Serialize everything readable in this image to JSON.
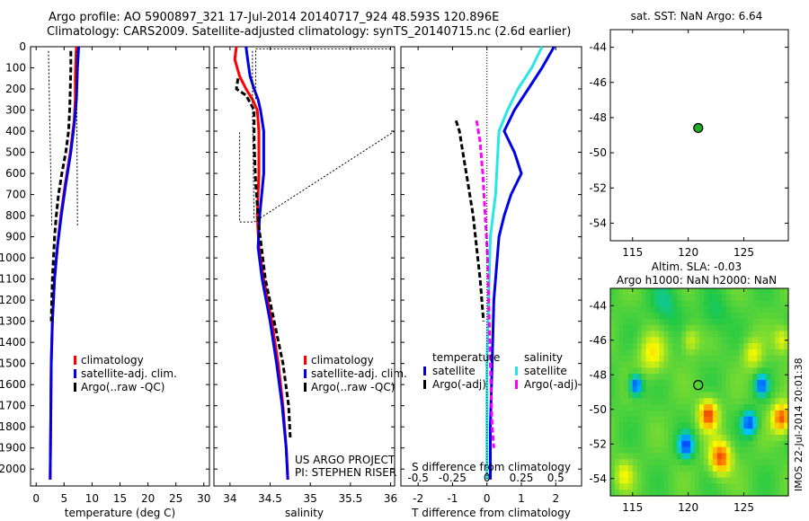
{
  "header": {
    "line1": "Argo profile: AO 5900897_321 17-Jul-2014 20140717_924 48.593S 120.896E",
    "line2": "Climatology: CARS2009. Satellite-adjusted climatology: synTS_20140715.nc (2.6d earlier)"
  },
  "credits": {
    "project": "US ARGO PROJECT",
    "pi": "PI: STEPHEN RISER",
    "side_stamp": "IMOS 22-Jul-2014 20:01:38"
  },
  "colors": {
    "climatology": "#ff0000",
    "satellite": "#0000e6",
    "argo": "#000000",
    "satellite_salinity": "#28e6e6",
    "argo_salinity": "#ff00ff",
    "marker": "#22aa22"
  },
  "chart_data": [
    {
      "id": "temperature",
      "type": "line",
      "xlabel": "temperature (deg C)",
      "ylabel": "",
      "xlim": [
        -1,
        31
      ],
      "ylim": [
        2080,
        0
      ],
      "xticks": [
        0,
        5,
        10,
        15,
        20,
        25,
        30
      ],
      "yticks": [
        0,
        100,
        200,
        300,
        400,
        500,
        600,
        700,
        800,
        900,
        1000,
        1100,
        1200,
        1300,
        1400,
        1500,
        1600,
        1700,
        1800,
        1900,
        2000
      ],
      "legend": [
        "climatology",
        "satellite-adj. clim.",
        "Argo(..raw -QC)"
      ],
      "series": [
        {
          "name": "climatology",
          "color": "#ff0000",
          "dash": "",
          "points": [
            [
              7.2,
              0
            ],
            [
              7.1,
              60
            ],
            [
              7.0,
              150
            ],
            [
              7.0,
              250
            ],
            [
              6.8,
              350
            ],
            [
              6.1,
              500
            ],
            [
              5.2,
              650
            ],
            [
              4.4,
              800
            ],
            [
              3.8,
              950
            ],
            [
              3.3,
              1100
            ],
            [
              2.9,
              1300
            ],
            [
              2.7,
              1500
            ],
            [
              2.6,
              1800
            ],
            [
              2.5,
              2050
            ]
          ]
        },
        {
          "name": "satellite-adj. clim.",
          "color": "#0000e6",
          "dash": "",
          "points": [
            [
              7.6,
              0
            ],
            [
              7.4,
              100
            ],
            [
              7.2,
              250
            ],
            [
              6.9,
              350
            ],
            [
              6.2,
              500
            ],
            [
              5.3,
              650
            ],
            [
              4.5,
              800
            ],
            [
              3.8,
              950
            ],
            [
              3.3,
              1100
            ],
            [
              2.9,
              1300
            ],
            [
              2.7,
              1500
            ],
            [
              2.6,
              1800
            ],
            [
              2.5,
              2050
            ]
          ]
        },
        {
          "name": "Argo(..raw -QC)",
          "color": "#000000",
          "dash": "6,3",
          "points": [
            [
              6.2,
              20
            ],
            [
              6.2,
              100
            ],
            [
              6.1,
              200
            ],
            [
              6.0,
              300
            ],
            [
              5.8,
              400
            ],
            [
              5.3,
              500
            ],
            [
              4.6,
              600
            ],
            [
              4.0,
              700
            ],
            [
              3.6,
              800
            ],
            [
              3.3,
              900
            ],
            [
              3.1,
              1000
            ],
            [
              2.9,
              1100
            ],
            [
              2.8,
              1200
            ],
            [
              2.7,
              1300
            ]
          ]
        }
      ]
    },
    {
      "id": "salinity",
      "type": "line",
      "xlabel": "salinity",
      "ylabel": "",
      "xlim": [
        33.8,
        36.05
      ],
      "ylim": [
        2080,
        0
      ],
      "xticks": [
        34,
        34.5,
        35,
        35.5,
        36
      ],
      "yticks": [
        0,
        100,
        200,
        300,
        400,
        500,
        600,
        700,
        800,
        900,
        1000,
        1100,
        1200,
        1300,
        1400,
        1500,
        1600,
        1700,
        1800,
        1900,
        2000
      ],
      "legend": [
        "climatology",
        "satellite-adj. clim.",
        "Argo(..raw -QC)"
      ],
      "series": [
        {
          "name": "climatology",
          "color": "#ff0000",
          "dash": "",
          "points": [
            [
              34.08,
              0
            ],
            [
              34.06,
              60
            ],
            [
              34.12,
              140
            ],
            [
              34.2,
              200
            ],
            [
              34.28,
              250
            ],
            [
              34.34,
              300
            ],
            [
              34.36,
              400
            ],
            [
              34.36,
              600
            ],
            [
              34.34,
              800
            ],
            [
              34.36,
              950
            ],
            [
              34.42,
              1100
            ],
            [
              34.52,
              1300
            ],
            [
              34.6,
              1500
            ],
            [
              34.66,
              1700
            ],
            [
              34.7,
              1900
            ],
            [
              34.72,
              2050
            ]
          ]
        },
        {
          "name": "satellite-adj. clim.",
          "color": "#0000e6",
          "dash": "",
          "points": [
            [
              34.2,
              0
            ],
            [
              34.22,
              60
            ],
            [
              34.25,
              140
            ],
            [
              34.3,
              200
            ],
            [
              34.35,
              250
            ],
            [
              34.38,
              300
            ],
            [
              34.42,
              400
            ],
            [
              34.42,
              600
            ],
            [
              34.37,
              800
            ],
            [
              34.35,
              950
            ],
            [
              34.4,
              1100
            ],
            [
              34.5,
              1300
            ],
            [
              34.58,
              1500
            ],
            [
              34.65,
              1700
            ],
            [
              34.7,
              1900
            ],
            [
              34.72,
              2050
            ]
          ]
        },
        {
          "name": "Argo(..raw -QC)",
          "color": "#000000",
          "dash": "6,3",
          "points": [
            [
              34.1,
              150
            ],
            [
              34.08,
              200
            ],
            [
              34.2,
              230
            ],
            [
              34.3,
              300
            ],
            [
              34.3,
              450
            ],
            [
              34.32,
              650
            ],
            [
              34.36,
              850
            ],
            [
              34.44,
              1100
            ],
            [
              34.55,
              1300
            ],
            [
              34.66,
              1500
            ],
            [
              34.73,
              1700
            ],
            [
              34.75,
              1850
            ]
          ]
        }
      ]
    },
    {
      "id": "difference",
      "type": "line",
      "xlabel": "T difference from climatology",
      "top_xlabel": "S difference from climatology",
      "ylabel": "",
      "xlim": [
        -2.5,
        2.75
      ],
      "ylim": [
        2080,
        0
      ],
      "xticks": [
        -2,
        -1,
        0,
        1,
        2
      ],
      "top_xticks": [
        "-0.5",
        "-0.25",
        "0",
        "0.25",
        "0.5"
      ],
      "yticks": [
        0,
        100,
        200,
        300,
        400,
        500,
        600,
        700,
        800,
        900,
        1000,
        1100,
        1200,
        1300,
        1400,
        1500,
        1600,
        1700,
        1800,
        1900,
        2000
      ],
      "legend": [
        "temperature",
        "satellite",
        "Argo(-adj)",
        "salinity",
        "satellite",
        "Argo(-adj)"
      ],
      "series": [
        {
          "name": "satellite",
          "color": "#0000e6",
          "dash": "",
          "points": [
            [
              1.95,
              0
            ],
            [
              1.6,
              100
            ],
            [
              1.2,
              200
            ],
            [
              0.8,
              300
            ],
            [
              0.5,
              400
            ],
            [
              0.8,
              500
            ],
            [
              1.0,
              600
            ],
            [
              0.7,
              700
            ],
            [
              0.5,
              800
            ],
            [
              0.35,
              900
            ],
            [
              0.3,
              1000
            ],
            [
              0.2,
              1200
            ],
            [
              0.15,
              1500
            ],
            [
              0.1,
              1800
            ],
            [
              0.1,
              2050
            ]
          ]
        },
        {
          "name": "Argo(-adj)",
          "color": "#000000",
          "dash": "6,3",
          "points": [
            [
              -0.9,
              350
            ],
            [
              -0.8,
              400
            ],
            [
              -0.7,
              500
            ],
            [
              -0.55,
              650
            ],
            [
              -0.4,
              800
            ],
            [
              -0.3,
              950
            ],
            [
              -0.2,
              1100
            ],
            [
              -0.1,
              1300
            ]
          ]
        },
        {
          "name": "satellite",
          "color": "#28e6e6",
          "dash": "",
          "points": [
            [
              1.6,
              0
            ],
            [
              1.3,
              100
            ],
            [
              0.9,
              200
            ],
            [
              0.6,
              300
            ],
            [
              0.35,
              400
            ],
            [
              0.3,
              550
            ],
            [
              0.25,
              700
            ],
            [
              0.1,
              900
            ],
            [
              0.05,
              1200
            ],
            [
              0.0,
              1500
            ],
            [
              0.0,
              1800
            ],
            [
              0.0,
              2050
            ]
          ]
        },
        {
          "name": "Argo(-adj)",
          "color": "#ff00ff",
          "dash": "6,3",
          "points": [
            [
              -0.3,
              350
            ],
            [
              -0.2,
              450
            ],
            [
              -0.12,
              600
            ],
            [
              -0.05,
              800
            ],
            [
              0.02,
              1000
            ],
            [
              0.05,
              1200
            ],
            [
              0.1,
              1500
            ],
            [
              0.15,
              1800
            ],
            [
              0.2,
              1900
            ]
          ]
        }
      ]
    },
    {
      "id": "sst_map",
      "type": "scatter",
      "title": "sat. SST: NaN Argo: 6.64",
      "xlim": [
        113,
        129
      ],
      "ylim": [
        -55,
        -43
      ],
      "xticks": [
        115,
        120,
        125
      ],
      "yticks": [
        -44,
        -46,
        -48,
        -50,
        -52,
        -54
      ],
      "points": [
        [
          120.9,
          -48.59
        ]
      ]
    },
    {
      "id": "sla_map",
      "type": "heatmap",
      "title_line1": "Altim. SLA: -0.03",
      "title_line2": "Argo h1000: NaN h2000: NaN",
      "xlim": [
        113,
        129
      ],
      "ylim": [
        -55,
        -43
      ],
      "xticks": [
        115,
        120,
        125
      ],
      "yticks": [
        -44,
        -46,
        -48,
        -50,
        -52,
        -54
      ],
      "points": [
        [
          120.9,
          -48.59
        ]
      ],
      "features": [
        {
          "lon": 121.8,
          "lat": -50.3,
          "amp": 1.0,
          "r": 0.9
        },
        {
          "lon": 122.9,
          "lat": -52.8,
          "amp": 1.0,
          "r": 1.0
        },
        {
          "lon": 128.4,
          "lat": -50.5,
          "amp": 1.0,
          "r": 0.9
        },
        {
          "lon": 116.8,
          "lat": -46.8,
          "amp": 0.55,
          "r": 1.2
        },
        {
          "lon": 125.8,
          "lat": -46.8,
          "amp": 0.5,
          "r": 0.9
        },
        {
          "lon": 128.5,
          "lat": -46.0,
          "amp": 0.5,
          "r": 0.8
        },
        {
          "lon": 120.2,
          "lat": -46.0,
          "amp": 0.45,
          "r": 0.8
        },
        {
          "lon": 114.2,
          "lat": -53.8,
          "amp": 0.45,
          "r": 0.9
        },
        {
          "lon": 115.3,
          "lat": -48.6,
          "amp": -1.0,
          "r": 0.6
        },
        {
          "lon": 119.8,
          "lat": -52.1,
          "amp": -0.9,
          "r": 0.7
        },
        {
          "lon": 125.5,
          "lat": -50.8,
          "amp": -0.9,
          "r": 0.7
        },
        {
          "lon": 126.6,
          "lat": -48.6,
          "amp": -0.8,
          "r": 0.6
        },
        {
          "lon": 118.0,
          "lat": -44.0,
          "amp": -0.3,
          "r": 1.4
        },
        {
          "lon": 122.5,
          "lat": -44.5,
          "amp": -0.25,
          "r": 1.2
        }
      ]
    }
  ]
}
